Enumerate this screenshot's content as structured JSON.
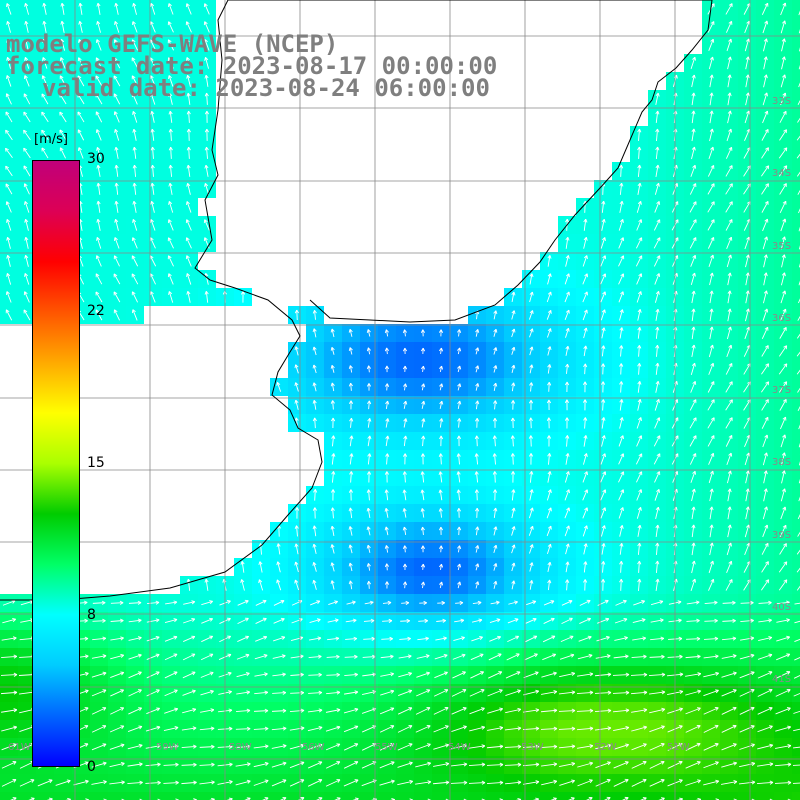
{
  "title": {
    "model": "modelo GEFS-WAVE (NCEP)",
    "forecast": "forecast date: 2023-08-17 00:00:00",
    "valid": "valid date: 2023-08-24 06:00:00"
  },
  "colorbar": {
    "unit": "[m/s]",
    "min": 0,
    "max": 30,
    "ticks": [
      "30",
      "22",
      "15",
      "8",
      "0"
    ],
    "gradient": [
      "#0000ff",
      "#0066ff",
      "#00ccff",
      "#00ffff",
      "#00ff66",
      "#00cc00",
      "#aaff00",
      "#ffff00",
      "#ffaa00",
      "#ff5500",
      "#ff0000",
      "#dd0055",
      "#c0007a"
    ]
  },
  "map_labels": {
    "right_lat": [
      "33S",
      "34S",
      "35S",
      "36S",
      "37S",
      "38S",
      "39S",
      "40S",
      "41S"
    ],
    "bottom_lon": [
      "61W",
      "59W",
      "58W",
      "56W",
      "55W",
      "54W",
      "53W",
      "52W",
      "51W"
    ]
  },
  "colors": {
    "land": "#ffffff",
    "grid": "#888888",
    "coast": "#000000",
    "title": "#7f7f7f"
  }
}
